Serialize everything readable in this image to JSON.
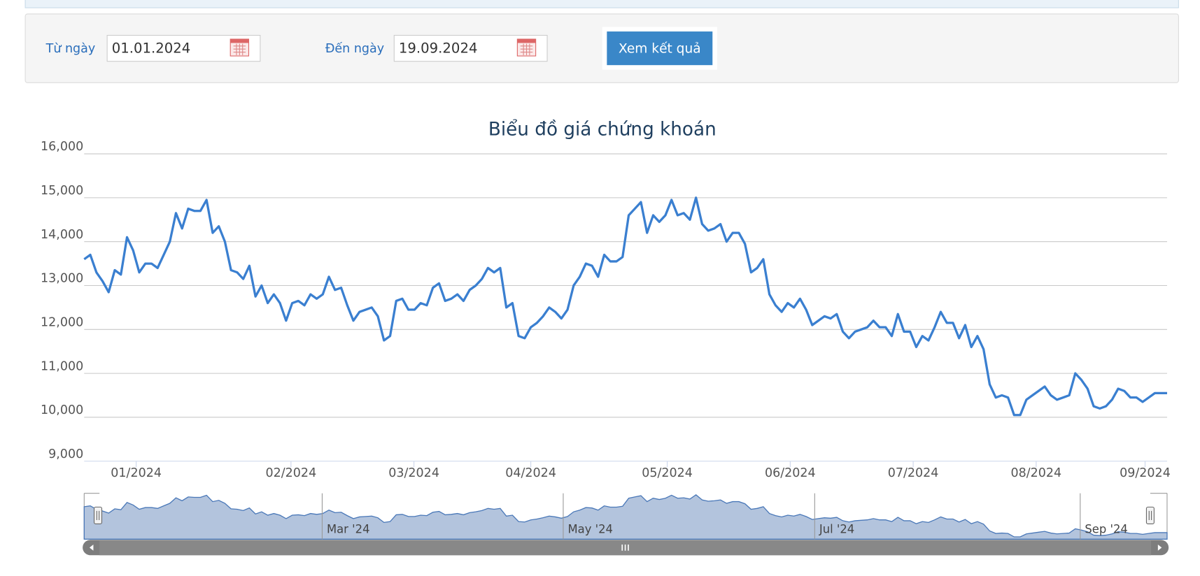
{
  "form": {
    "from_label": "Từ ngày",
    "from_value": "01.01.2024",
    "to_label": "Đến ngày",
    "to_value": "19.09.2024",
    "button": "Xem kết quả"
  },
  "chart_data": {
    "type": "line",
    "title": "Biểu đồ giá chứng khoán",
    "color": "#3a7fd0",
    "grid": true,
    "ylim": [
      9000,
      16000
    ],
    "yticks": [
      {
        "value": 9000,
        "label": "9,000"
      },
      {
        "value": 10000,
        "label": "10,000"
      },
      {
        "value": 11000,
        "label": "11,000"
      },
      {
        "value": 12000,
        "label": "12,000"
      },
      {
        "value": 13000,
        "label": "13,000"
      },
      {
        "value": 14000,
        "label": "14,000"
      },
      {
        "value": 15000,
        "label": "15,000"
      },
      {
        "value": 16000,
        "label": "16,000"
      }
    ],
    "xticks": [
      {
        "value": 8.5,
        "label": "01/2024"
      },
      {
        "value": 33.8,
        "label": "02/2024"
      },
      {
        "value": 53.9,
        "label": "03/2024"
      },
      {
        "value": 73,
        "label": "04/2024"
      },
      {
        "value": 95.3,
        "label": "05/2024"
      },
      {
        "value": 115.4,
        "label": "06/2024"
      },
      {
        "value": 135.5,
        "label": "07/2024"
      },
      {
        "value": 155.6,
        "label": "08/2024"
      },
      {
        "value": 173.4,
        "label": "09/2024"
      }
    ],
    "navigator_ticks": [
      {
        "value": 38.9,
        "label": "Mar '24"
      },
      {
        "value": 78.3,
        "label": "May '24"
      },
      {
        "value": 119.4,
        "label": "Jul '24"
      },
      {
        "value": 162.8,
        "label": "Sep '24"
      }
    ],
    "values": [
      13600,
      13700,
      13300,
      13100,
      12850,
      13350,
      13250,
      14100,
      13800,
      13300,
      13500,
      13500,
      13400,
      13700,
      14000,
      14650,
      14300,
      14750,
      14700,
      14700,
      14950,
      14200,
      14350,
      14000,
      13350,
      13300,
      13150,
      13450,
      12750,
      13000,
      12600,
      12800,
      12600,
      12200,
      12600,
      12650,
      12550,
      12800,
      12700,
      12800,
      13200,
      12900,
      12950,
      12550,
      12200,
      12400,
      12450,
      12500,
      12300,
      11750,
      11850,
      12650,
      12700,
      12450,
      12450,
      12600,
      12550,
      12950,
      13050,
      12650,
      12700,
      12800,
      12650,
      12900,
      13000,
      13150,
      13400,
      13300,
      13400,
      12500,
      12600,
      11850,
      11800,
      12050,
      12150,
      12300,
      12500,
      12400,
      12250,
      12450,
      13000,
      13200,
      13500,
      13450,
      13200,
      13700,
      13550,
      13550,
      13650,
      14600,
      14750,
      14900,
      14200,
      14600,
      14450,
      14600,
      14950,
      14600,
      14650,
      14500,
      15000,
      14400,
      14250,
      14300,
      14400,
      14000,
      14200,
      14200,
      13950,
      13300,
      13400,
      13600,
      12800,
      12550,
      12400,
      12600,
      12500,
      12700,
      12450,
      12100,
      12200,
      12300,
      12250,
      12350,
      11950,
      11800,
      11950,
      12000,
      12050,
      12200,
      12050,
      12050,
      11850,
      12350,
      11950,
      11950,
      11600,
      11850,
      11750,
      12050,
      12400,
      12150,
      12150,
      11800,
      12100,
      11600,
      11850,
      11550,
      10750,
      10450,
      10500,
      10450,
      10050,
      10050,
      10400,
      10500,
      10600,
      10700,
      10500,
      10400,
      10450,
      10500,
      11000,
      10850,
      10650,
      10250,
      10200,
      10250,
      10400,
      10650,
      10600,
      10450,
      10450,
      10350,
      10450,
      10550,
      10550,
      10550
    ]
  }
}
